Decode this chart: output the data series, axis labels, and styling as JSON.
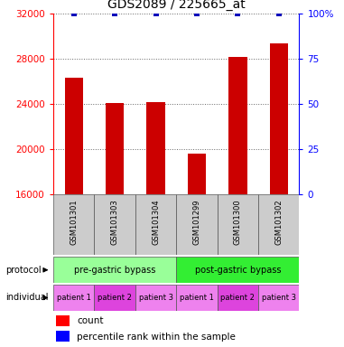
{
  "title": "GDS2089 / 225665_at",
  "samples": [
    "GSM101301",
    "GSM101303",
    "GSM101304",
    "GSM101299",
    "GSM101300",
    "GSM101302"
  ],
  "counts": [
    26300,
    24100,
    24200,
    19600,
    28200,
    29400
  ],
  "percentile_ranks": [
    100,
    100,
    100,
    100,
    100,
    100
  ],
  "ylim_left": [
    16000,
    32000
  ],
  "ylim_right": [
    0,
    100
  ],
  "yticks_left": [
    16000,
    20000,
    24000,
    28000,
    32000
  ],
  "yticks_right": [
    0,
    25,
    50,
    75,
    100
  ],
  "bar_color": "#cc0000",
  "percentile_color": "#0000bb",
  "bar_width": 0.45,
  "protocol_groups": [
    {
      "label": "pre-gastric bypass",
      "start": 0,
      "end": 3,
      "color": "#99ff99"
    },
    {
      "label": "post-gastric bypass",
      "start": 3,
      "end": 6,
      "color": "#33ee33"
    }
  ],
  "individual_groups": [
    {
      "label": "patient 1",
      "color": "#ee82ee"
    },
    {
      "label": "patient 2",
      "color": "#dd44dd"
    },
    {
      "label": "patient 3",
      "color": "#ee82ee"
    },
    {
      "label": "patient 1",
      "color": "#ee82ee"
    },
    {
      "label": "patient 2",
      "color": "#dd44dd"
    },
    {
      "label": "patient 3",
      "color": "#ee82ee"
    }
  ],
  "sample_box_color": "#cccccc",
  "title_fontsize": 10,
  "tick_fontsize": 7.5,
  "label_fontsize": 7
}
